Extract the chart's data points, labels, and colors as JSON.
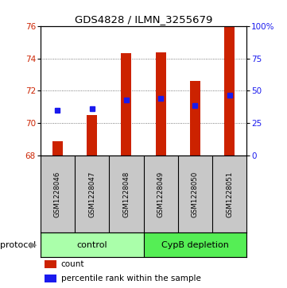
{
  "title": "GDS4828 / ILMN_3255679",
  "samples": [
    "GSM1228046",
    "GSM1228047",
    "GSM1228048",
    "GSM1228049",
    "GSM1228050",
    "GSM1228051"
  ],
  "count_values": [
    68.9,
    70.5,
    74.3,
    74.35,
    72.6,
    76.0
  ],
  "percentile_values": [
    70.8,
    70.9,
    71.45,
    71.55,
    71.1,
    71.7
  ],
  "count_baseline": 68.0,
  "ylim_left": [
    68,
    76
  ],
  "ylim_right": [
    0,
    100
  ],
  "yticks_left": [
    68,
    70,
    72,
    74,
    76
  ],
  "yticks_right": [
    0,
    25,
    50,
    75,
    100
  ],
  "ytick_labels_right": [
    "0",
    "25",
    "50",
    "75",
    "100%"
  ],
  "bar_color": "#cc2200",
  "dot_color": "#1a1aee",
  "control_color": "#aaffaa",
  "cypb_color": "#55ee55",
  "background_color": "white",
  "plot_bg": "white",
  "group_bg_color": "#c8c8c8"
}
